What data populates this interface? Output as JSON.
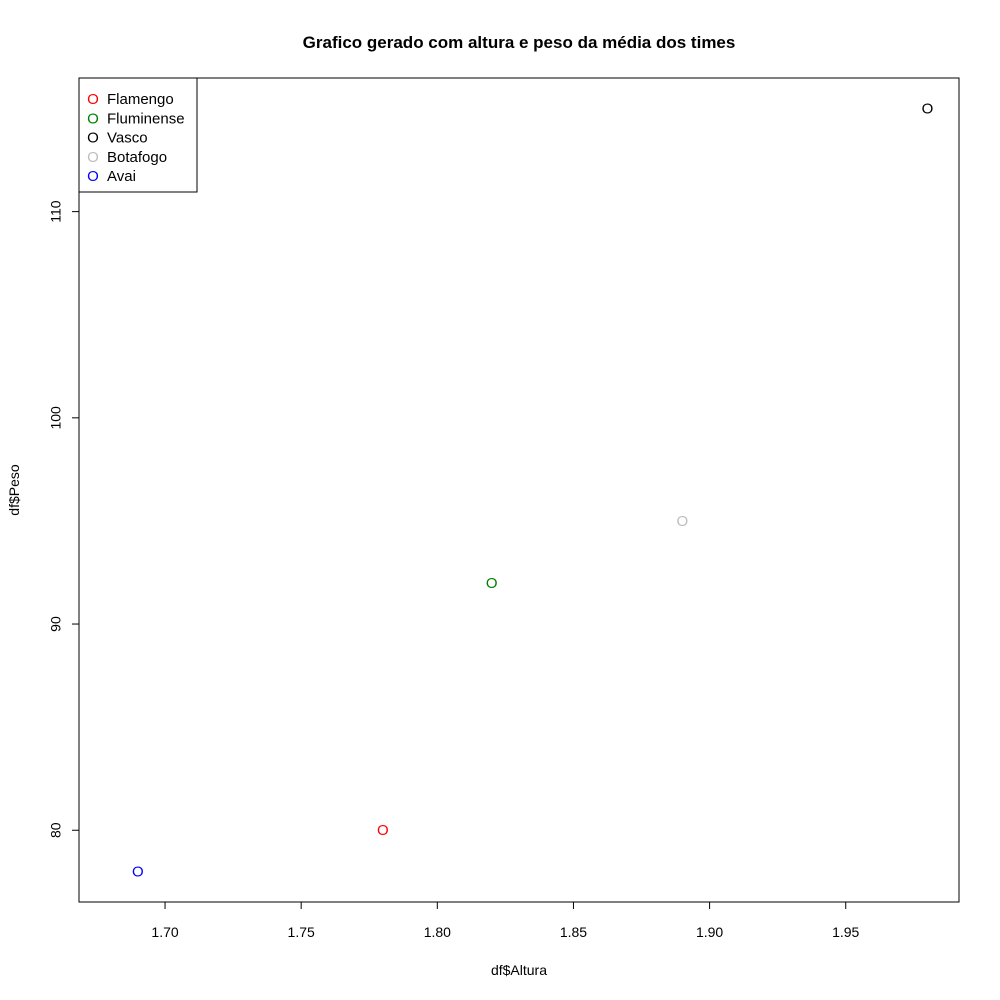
{
  "chart_data": {
    "type": "scatter",
    "title": "Grafico gerado com altura e peso da média dos times",
    "xlabel": "df$Altura",
    "ylabel": "df$Peso",
    "xlim": [
      1.6684,
      1.9916
    ],
    "ylim": [
      76.52,
      116.48
    ],
    "x_ticks": [
      {
        "value": 1.7,
        "label": "1.70"
      },
      {
        "value": 1.75,
        "label": "1.75"
      },
      {
        "value": 1.8,
        "label": "1.80"
      },
      {
        "value": 1.85,
        "label": "1.85"
      },
      {
        "value": 1.9,
        "label": "1.90"
      },
      {
        "value": 1.95,
        "label": "1.95"
      }
    ],
    "y_ticks": [
      {
        "value": 80,
        "label": "80"
      },
      {
        "value": 90,
        "label": "90"
      },
      {
        "value": 100,
        "label": "100"
      },
      {
        "value": 110,
        "label": "110"
      }
    ],
    "marker": "O",
    "grid": false,
    "legend_position": "top-left",
    "points": [
      {
        "name": "Flamengo",
        "x": 1.78,
        "y": 80,
        "color": "#ff0000"
      },
      {
        "name": "Fluminense",
        "x": 1.82,
        "y": 92,
        "color": "#008000"
      },
      {
        "name": "Vasco",
        "x": 1.98,
        "y": 115,
        "color": "#000000"
      },
      {
        "name": "Botafogo",
        "x": 1.89,
        "y": 95,
        "color": "#bebebe"
      },
      {
        "name": "Avai",
        "x": 1.69,
        "y": 78,
        "color": "#0000ff"
      }
    ]
  }
}
